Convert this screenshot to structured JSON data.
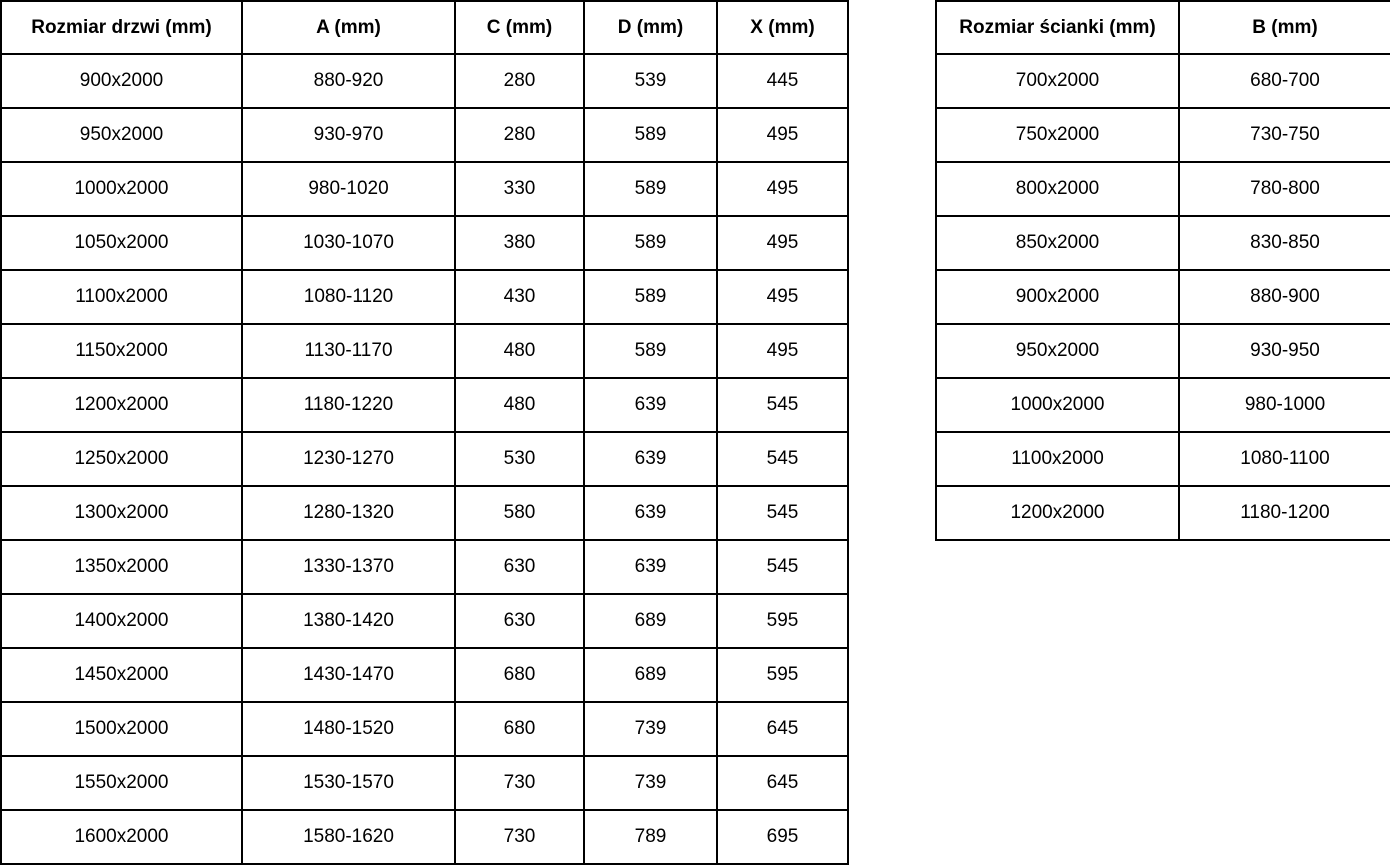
{
  "doors_table": {
    "headers": [
      "Rozmiar drzwi (mm)",
      "A (mm)",
      "C (mm)",
      "D (mm)",
      "X (mm)"
    ],
    "rows": [
      [
        "900x2000",
        "880-920",
        "280",
        "539",
        "445"
      ],
      [
        "950x2000",
        "930-970",
        "280",
        "589",
        "495"
      ],
      [
        "1000x2000",
        "980-1020",
        "330",
        "589",
        "495"
      ],
      [
        "1050x2000",
        "1030-1070",
        "380",
        "589",
        "495"
      ],
      [
        "1100x2000",
        "1080-1120",
        "430",
        "589",
        "495"
      ],
      [
        "1150x2000",
        "1130-1170",
        "480",
        "589",
        "495"
      ],
      [
        "1200x2000",
        "1180-1220",
        "480",
        "639",
        "545"
      ],
      [
        "1250x2000",
        "1230-1270",
        "530",
        "639",
        "545"
      ],
      [
        "1300x2000",
        "1280-1320",
        "580",
        "639",
        "545"
      ],
      [
        "1350x2000",
        "1330-1370",
        "630",
        "639",
        "545"
      ],
      [
        "1400x2000",
        "1380-1420",
        "630",
        "689",
        "595"
      ],
      [
        "1450x2000",
        "1430-1470",
        "680",
        "689",
        "595"
      ],
      [
        "1500x2000",
        "1480-1520",
        "680",
        "739",
        "645"
      ],
      [
        "1550x2000",
        "1530-1570",
        "730",
        "739",
        "645"
      ],
      [
        "1600x2000",
        "1580-1620",
        "730",
        "789",
        "695"
      ]
    ]
  },
  "walls_table": {
    "headers": [
      "Rozmiar ścianki (mm)",
      "B (mm)"
    ],
    "rows": [
      [
        "700x2000",
        "680-700"
      ],
      [
        "750x2000",
        "730-750"
      ],
      [
        "800x2000",
        "780-800"
      ],
      [
        "850x2000",
        "830-850"
      ],
      [
        "900x2000",
        "880-900"
      ],
      [
        "950x2000",
        "930-950"
      ],
      [
        "1000x2000",
        "980-1000"
      ],
      [
        "1100x2000",
        "1080-1100"
      ],
      [
        "1200x2000",
        "1180-1200"
      ]
    ]
  },
  "colors": {
    "text": "#000000",
    "border": "#000000",
    "background": "#ffffff"
  }
}
